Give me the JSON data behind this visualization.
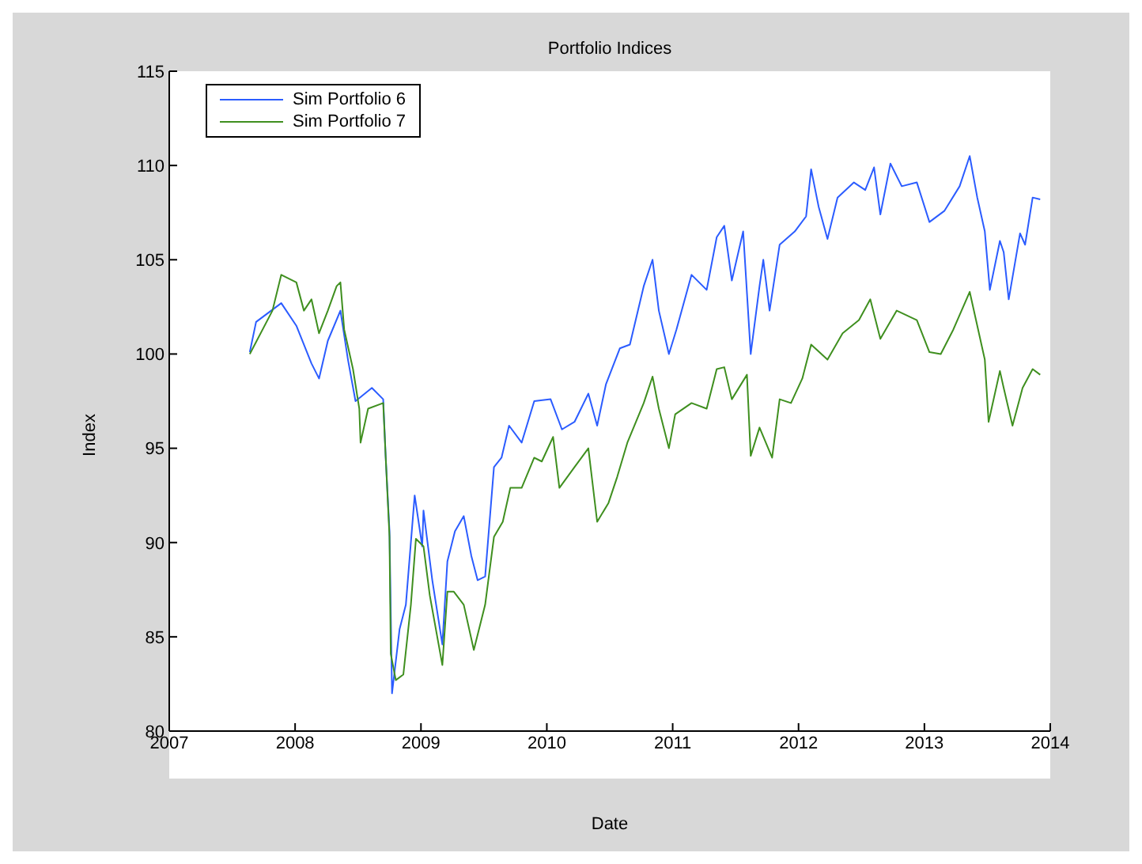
{
  "chart_data": {
    "type": "line",
    "title": "Portfolio Indices",
    "xlabel": "Date",
    "ylabel": "Index",
    "xlim": [
      2007,
      2014
    ],
    "xticks": [
      2007,
      2008,
      2009,
      2010,
      2011,
      2012,
      2013,
      2014
    ],
    "ylim": [
      80,
      115
    ],
    "yticks": [
      80,
      85,
      90,
      95,
      100,
      105,
      110,
      115
    ],
    "grid": false,
    "legend": "top left",
    "marker": "none",
    "line_style": "solid",
    "series": [
      {
        "name": "Sim Portfolio 6",
        "color": "#2b5cff",
        "x": [
          2007.64,
          2007.69,
          2007.89,
          2008.01,
          2008.13,
          2008.19,
          2008.26,
          2008.36,
          2008.42,
          2008.48,
          2008.61,
          2008.7,
          2008.72,
          2008.75,
          2008.77,
          2008.83,
          2008.88,
          2008.95,
          2009.01,
          2009.02,
          2009.09,
          2009.17,
          2009.21,
          2009.27,
          2009.34,
          2009.4,
          2009.45,
          2009.51,
          2009.58,
          2009.64,
          2009.7,
          2009.8,
          2009.9,
          2010.03,
          2010.12,
          2010.22,
          2010.33,
          2010.4,
          2010.47,
          2010.58,
          2010.66,
          2010.77,
          2010.84,
          2010.89,
          2010.97,
          2011.03,
          2011.15,
          2011.27,
          2011.35,
          2011.41,
          2011.47,
          2011.56,
          2011.62,
          2011.69,
          2011.72,
          2011.77,
          2011.85,
          2011.97,
          2012.06,
          2012.1,
          2012.16,
          2012.23,
          2012.31,
          2012.44,
          2012.53,
          2012.6,
          2012.65,
          2012.73,
          2012.82,
          2012.94,
          2013.04,
          2013.16,
          2013.28,
          2013.36,
          2013.42,
          2013.48,
          2013.52,
          2013.6,
          2013.63,
          2013.67,
          2013.76,
          2013.8,
          2013.86,
          2013.92
        ],
        "values": [
          100.1,
          101.7,
          102.7,
          101.5,
          99.5,
          98.7,
          100.7,
          102.3,
          99.7,
          97.5,
          98.2,
          97.6,
          94.5,
          90.6,
          82.0,
          85.4,
          86.7,
          92.5,
          89.8,
          91.7,
          88.0,
          84.6,
          89.0,
          90.6,
          91.4,
          89.3,
          88.0,
          88.2,
          94.0,
          94.5,
          96.2,
          95.3,
          97.5,
          97.6,
          96.0,
          96.4,
          97.9,
          96.2,
          98.4,
          100.3,
          100.5,
          103.6,
          105.0,
          102.3,
          100.0,
          101.3,
          104.2,
          103.4,
          106.2,
          106.8,
          103.9,
          106.5,
          100.0,
          103.6,
          105.0,
          102.3,
          105.8,
          106.5,
          107.3,
          109.8,
          107.8,
          106.1,
          108.3,
          109.1,
          108.7,
          109.9,
          107.4,
          110.1,
          108.9,
          109.1,
          107.0,
          107.6,
          108.9,
          110.5,
          108.3,
          106.5,
          103.4,
          106.0,
          105.4,
          102.9,
          106.4,
          105.8,
          108.3,
          108.2
        ]
      },
      {
        "name": "Sim Portfolio 7",
        "color": "#3f8f1f",
        "x": [
          2007.64,
          2007.82,
          2007.89,
          2008.01,
          2008.07,
          2008.13,
          2008.19,
          2008.26,
          2008.33,
          2008.36,
          2008.39,
          2008.46,
          2008.51,
          2008.52,
          2008.58,
          2008.7,
          2008.72,
          2008.75,
          2008.76,
          2008.8,
          2008.86,
          2008.92,
          2008.96,
          2009.02,
          2009.07,
          2009.17,
          2009.21,
          2009.26,
          2009.34,
          2009.42,
          2009.51,
          2009.58,
          2009.65,
          2009.71,
          2009.8,
          2009.9,
          2009.96,
          2010.05,
          2010.1,
          2010.22,
          2010.33,
          2010.4,
          2010.49,
          2010.56,
          2010.64,
          2010.77,
          2010.84,
          2010.89,
          2010.97,
          2011.02,
          2011.15,
          2011.27,
          2011.35,
          2011.41,
          2011.47,
          2011.59,
          2011.62,
          2011.69,
          2011.79,
          2011.85,
          2011.94,
          2012.03,
          2012.1,
          2012.23,
          2012.35,
          2012.48,
          2012.57,
          2012.65,
          2012.78,
          2012.94,
          2013.04,
          2013.13,
          2013.23,
          2013.36,
          2013.41,
          2013.48,
          2013.51,
          2013.6,
          2013.63,
          2013.7,
          2013.78,
          2013.86,
          2013.92
        ],
        "values": [
          100.0,
          102.3,
          104.2,
          103.8,
          102.3,
          102.9,
          101.1,
          102.3,
          103.6,
          103.8,
          101.3,
          99.2,
          97.1,
          95.3,
          97.1,
          97.4,
          94.5,
          90.3,
          84.1,
          82.7,
          83.0,
          86.7,
          90.2,
          89.8,
          87.2,
          83.5,
          87.4,
          87.4,
          86.7,
          84.3,
          86.7,
          90.3,
          91.1,
          92.9,
          92.9,
          94.5,
          94.3,
          95.6,
          92.9,
          94.0,
          95.0,
          91.1,
          92.1,
          93.5,
          95.3,
          97.4,
          98.8,
          97.1,
          95.0,
          96.8,
          97.4,
          97.1,
          99.2,
          99.3,
          97.6,
          98.9,
          94.6,
          96.1,
          94.5,
          97.6,
          97.4,
          98.7,
          100.5,
          99.7,
          101.1,
          101.8,
          102.9,
          100.8,
          102.3,
          101.8,
          100.1,
          100.0,
          101.3,
          103.3,
          101.8,
          99.7,
          96.4,
          99.1,
          98.2,
          96.2,
          98.2,
          99.2,
          98.9
        ]
      }
    ]
  }
}
